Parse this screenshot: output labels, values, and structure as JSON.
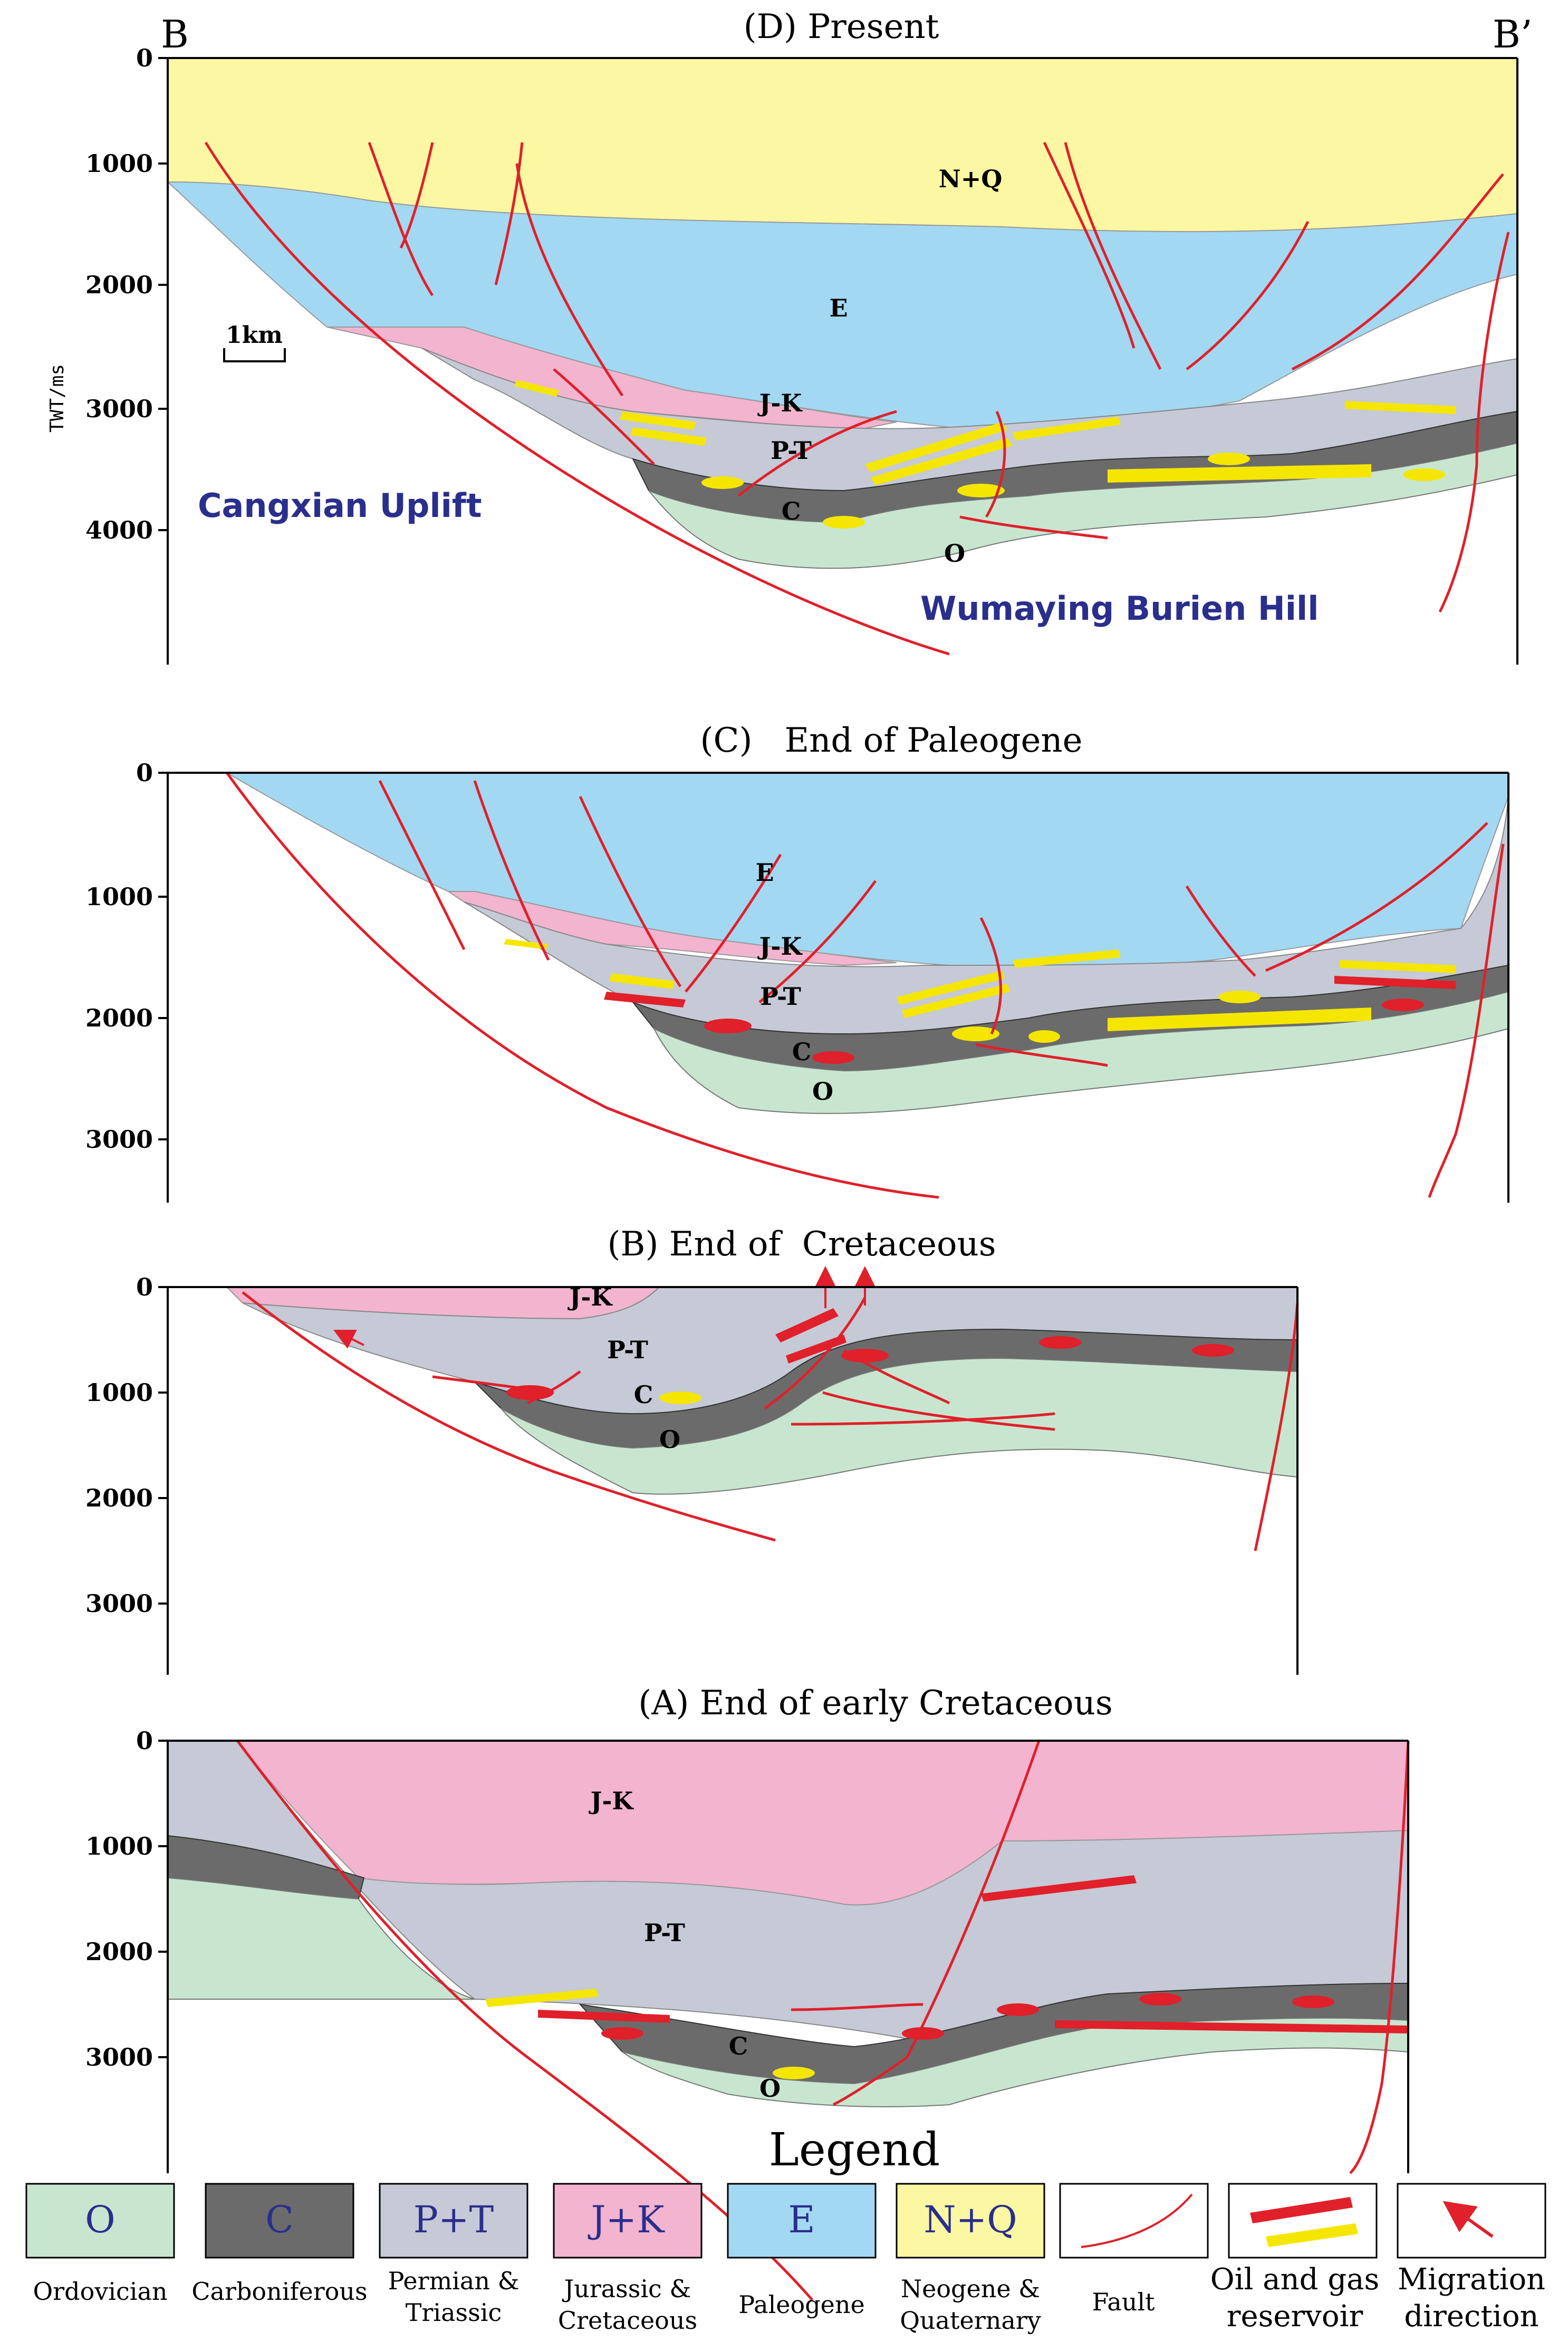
{
  "section_endpoints": {
    "left": "B",
    "right": "B’"
  },
  "y_axis_label": "TWT/ms",
  "scale_bar": "1km",
  "panels": [
    {
      "title": "(D) Present",
      "ticks": [
        "0",
        "1000",
        "2000",
        "3000",
        "4000"
      ],
      "layer_labels": {
        "nq": "N+Q",
        "e": "E",
        "jk": "J-K",
        "pt": "P-T",
        "c": "C",
        "o": "O"
      },
      "place_names": {
        "uplift": "Cangxian Uplift",
        "hill": "Wumaying Burien Hill"
      }
    },
    {
      "title": "(C)   End of Paleogene",
      "ticks": [
        "0",
        "1000",
        "2000",
        "3000"
      ],
      "layer_labels": {
        "e": "E",
        "jk": "J-K",
        "pt": "P-T",
        "c": "C",
        "o": "O"
      }
    },
    {
      "title": "(B) End of  Cretaceous",
      "ticks": [
        "0",
        "1000",
        "2000",
        "3000"
      ],
      "layer_labels": {
        "jk": "J-K",
        "pt": "P-T",
        "c": "C",
        "o": "O"
      }
    },
    {
      "title": "(A) End of early Cretaceous",
      "ticks": [
        "0",
        "1000",
        "2000",
        "3000"
      ],
      "layer_labels": {
        "jk": "J-K",
        "pt": "P-T",
        "c": "C",
        "o": "O"
      }
    }
  ],
  "legend": {
    "title": "Legend",
    "items": [
      {
        "symbol": "O",
        "label": [
          "Ordovician"
        ],
        "color": "#c8e6cf"
      },
      {
        "symbol": "C",
        "label": [
          "Carboniferous"
        ],
        "color": "#6b6b6b"
      },
      {
        "symbol": "P+T",
        "label": [
          "Permian &",
          "Triassic"
        ],
        "color": "#c6c9d6"
      },
      {
        "symbol": "J+K",
        "label": [
          "Jurassic &",
          "Cretaceous"
        ],
        "color": "#f2b4cf"
      },
      {
        "symbol": "E",
        "label": [
          "Paleogene"
        ],
        "color": "#a3d8f2"
      },
      {
        "symbol": "N+Q",
        "label": [
          "Neogene &",
          "Quaternary"
        ],
        "color": "#fbf7a3"
      },
      {
        "symbol": "",
        "label": [
          "Fault"
        ],
        "color": "#ffffff"
      },
      {
        "symbol": "",
        "label": [
          "Oil and gas",
          "reservoir"
        ],
        "color": "#ffffff"
      },
      {
        "symbol": "",
        "label": [
          "Migration",
          "direction"
        ],
        "color": "#ffffff"
      }
    ]
  },
  "colors": {
    "ordovician": "#c8e6cf",
    "carboniferous": "#6b6b6b",
    "permian_triassic": "#c6c9d6",
    "jurassic_cretaceous": "#f2b4cf",
    "paleogene": "#a3d8f2",
    "neogene_quaternary": "#fbf7a3",
    "fault": "#e0202a",
    "oil": "#e0202a",
    "gas": "#f5e600",
    "frame": "#000000",
    "place_name": "#2a2e8c"
  }
}
